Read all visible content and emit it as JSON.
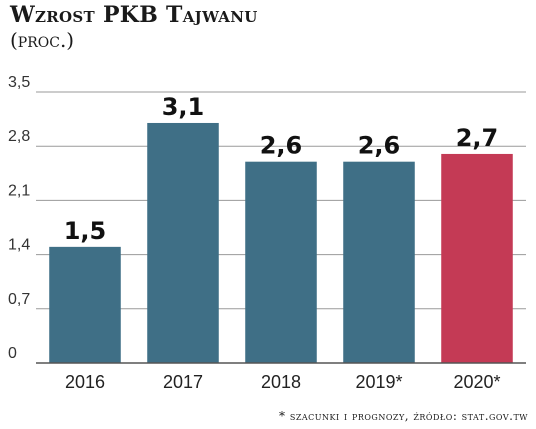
{
  "chart_data": {
    "type": "bar",
    "title": "Wzrost PKB Tajwanu",
    "subtitle": "(proc.)",
    "categories": [
      "2016",
      "2017",
      "2018",
      "2019*",
      "2020*"
    ],
    "values": [
      1.5,
      3.1,
      2.6,
      2.6,
      2.7
    ],
    "value_labels": [
      "1,5",
      "3,1",
      "2,6",
      "2,6",
      "2,7"
    ],
    "bar_colors": [
      "#3f6f86",
      "#3f6f86",
      "#3f6f86",
      "#3f6f86",
      "#c43a55"
    ],
    "yticks": [
      0,
      0.7,
      1.4,
      2.1,
      2.8,
      3.5
    ],
    "ytick_labels": [
      "0",
      "0,7",
      "1,4",
      "2,1",
      "2,8",
      "3,5"
    ],
    "ylim": [
      0,
      3.5
    ],
    "xlabel": "",
    "ylabel": "",
    "grid": true,
    "footnote": "* szacunki i prognozy, źródło: stat.gov.tw"
  }
}
